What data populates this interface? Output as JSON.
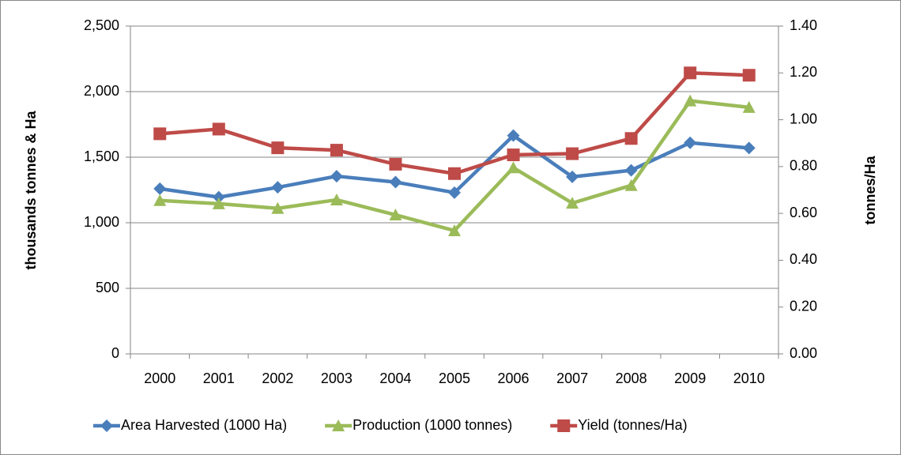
{
  "chart_data": {
    "type": "line",
    "categories": [
      "2000",
      "2001",
      "2002",
      "2003",
      "2004",
      "2005",
      "2006",
      "2007",
      "2008",
      "2009",
      "2010"
    ],
    "y_label": "thousands tonnes & Ha",
    "y2_label": "tonnes/Ha",
    "ylim": [
      0,
      2500
    ],
    "yticks": [
      0,
      500,
      {
        "value": 1000,
        "label": "1,000"
      },
      {
        "value": 1500,
        "label": "1,500"
      },
      {
        "value": 2000,
        "label": "2,000"
      },
      {
        "value": 2500,
        "label": "2,500"
      }
    ],
    "y2lim": [
      0,
      1.4
    ],
    "y2ticks": [
      {
        "value": 0,
        "label": "0.00"
      },
      {
        "value": 0.2,
        "label": "0.20"
      },
      {
        "value": 0.4,
        "label": "0.40"
      },
      {
        "value": 0.6,
        "label": "0.60"
      },
      {
        "value": 0.8,
        "label": "0.80"
      },
      {
        "value": 1.0,
        "label": "1.00"
      },
      {
        "value": 1.2,
        "label": "1.20"
      },
      {
        "value": 1.4,
        "label": "1.40"
      }
    ],
    "grid": true,
    "legend": "bottom",
    "series": [
      {
        "name": "Area Harvested (1000 Ha)",
        "color": "#4a7ebb",
        "marker": "diamond",
        "values": [
          1260,
          1195,
          1270,
          1355,
          1310,
          1230,
          1665,
          1350,
          1400,
          1610,
          1570
        ]
      },
      {
        "name": "Production (1000 tonnes)",
        "color": "#9bbb59",
        "marker": "triangle",
        "values": [
          1170,
          1145,
          1110,
          1175,
          1060,
          940,
          1420,
          1150,
          1285,
          1930,
          1880
        ]
      },
      {
        "name": "Yield (tonnes/Ha)",
        "color": "#be4b48",
        "marker": "square",
        "axis": "y2",
        "values": [
          0.94,
          0.96,
          0.88,
          0.87,
          0.81,
          0.77,
          0.85,
          0.855,
          0.92,
          1.2,
          1.19
        ]
      }
    ]
  }
}
